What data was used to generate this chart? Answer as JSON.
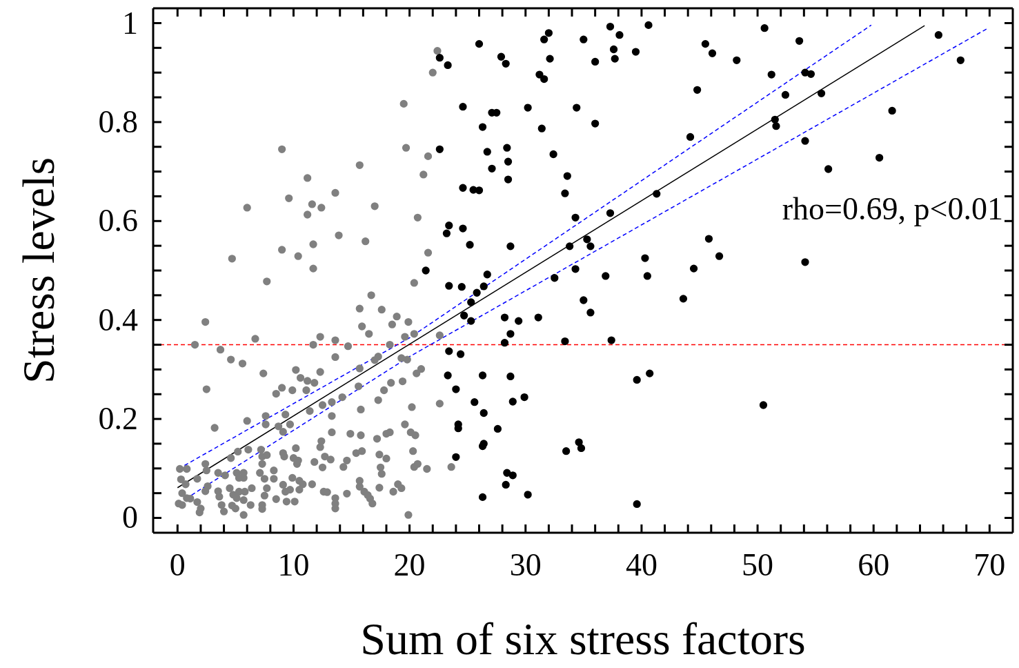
{
  "chart_data": {
    "type": "scatter",
    "xlabel": "Sum of six stress factors",
    "ylabel": "Stress levels",
    "marker": "circle",
    "xlim": [
      -2.1,
      72
    ],
    "ylim": [
      -0.03,
      1.03
    ],
    "xticks": [
      0,
      {
        "value": 2,
        "label": null
      },
      {
        "value": 4,
        "label": null
      },
      {
        "value": 6,
        "label": null
      },
      {
        "value": 8,
        "label": null
      },
      10,
      {
        "value": 12,
        "label": null
      },
      {
        "value": 14,
        "label": null
      },
      {
        "value": 16,
        "label": null
      },
      {
        "value": 18,
        "label": null
      },
      20,
      {
        "value": 22,
        "label": null
      },
      {
        "value": 24,
        "label": null
      },
      {
        "value": 26,
        "label": null
      },
      {
        "value": 28,
        "label": null
      },
      30,
      {
        "value": 32,
        "label": null
      },
      {
        "value": 34,
        "label": null
      },
      {
        "value": 36,
        "label": null
      },
      {
        "value": 38,
        "label": null
      },
      40,
      {
        "value": 42,
        "label": null
      },
      {
        "value": 44,
        "label": null
      },
      {
        "value": 46,
        "label": null
      },
      {
        "value": 48,
        "label": null
      },
      50,
      {
        "value": 52,
        "label": null
      },
      {
        "value": 54,
        "label": null
      },
      {
        "value": 56,
        "label": null
      },
      {
        "value": 58,
        "label": null
      },
      60,
      {
        "value": 62,
        "label": null
      },
      {
        "value": 64,
        "label": null
      },
      {
        "value": 66,
        "label": null
      },
      {
        "value": 68,
        "label": null
      },
      70
    ],
    "yticks": [
      0,
      {
        "value": 0.05,
        "label": null
      },
      {
        "value": 0.1,
        "label": null
      },
      {
        "value": 0.15,
        "label": null
      },
      0.2,
      {
        "value": 0.25,
        "label": null
      },
      {
        "value": 0.3,
        "label": null
      },
      {
        "value": 0.35,
        "label": null
      },
      0.4,
      {
        "value": 0.45,
        "label": null
      },
      {
        "value": 0.5,
        "label": null
      },
      {
        "value": 0.55,
        "label": null
      },
      0.6,
      {
        "value": 0.65,
        "label": null
      },
      {
        "value": 0.7,
        "label": null
      },
      {
        "value": 0.75,
        "label": null
      },
      0.8,
      {
        "value": 0.85,
        "label": null
      },
      {
        "value": 0.9,
        "label": null
      },
      {
        "value": 0.95,
        "label": null
      },
      1
    ],
    "ref_lines": [
      {
        "axis": "y",
        "value": 0.35,
        "color": "#ff0000",
        "line_style": "dashed"
      }
    ],
    "annotations": [
      "rho=0.69, p<0.01"
    ],
    "series": [
      {
        "color": "#808080",
        "x": [
          22.4,
          22.0,
          21.6,
          21.2,
          20.7,
          21.6,
          20.4,
          9.0,
          19.7,
          15.7,
          11.2,
          13.6,
          9.6,
          11.6,
          12.4,
          6.0,
          17.0,
          11.2,
          13.9,
          16.2,
          11.7,
          9.0,
          10.4,
          4.7,
          11.7,
          7.7,
          16.7,
          19.5,
          2.4,
          1.5,
          3.7,
          4.6,
          5.6,
          6.7,
          7.4,
          2.5,
          3.2,
          6.0,
          7.6,
          7.6,
          8.5,
          9.0,
          9.3,
          9.7,
          8.7,
          9.1,
          9.9,
          10.2,
          10.6,
          11.2,
          11.8,
          11.1,
          12.3,
          11.7,
          13.6,
          13.6,
          12.3,
          12.5,
          11.4,
          13.3,
          13.3,
          14.2,
          15.7,
          17.6,
          15.9,
          16.5,
          14.7,
          18.3,
          18.5,
          18.9,
          19.9,
          19.6,
          20.4,
          22.6,
          15.7,
          15.6,
          17.3,
          17.0,
          19.3,
          19.8,
          21.0,
          20.6,
          18.4,
          17.8,
          19.4,
          17.3,
          15.8,
          20.2,
          22.6,
          19.6,
          20.1,
          20.5,
          18.3,
          18.0,
          17.2,
          14.9,
          15.8,
          13.3,
          12.4,
          12.3,
          20.3,
          17.4,
          18.0,
          15.9,
          15.4,
          14.6,
          14.3,
          13.2,
          12.7,
          12.5,
          11.8,
          10.2,
          10.0,
          10.4,
          10.3,
          9.1,
          9.2,
          7.2,
          7.3,
          7.7,
          7.3,
          6.1,
          5.2,
          4.6,
          2.4,
          2.5,
          0.2,
          0.8,
          0.3,
          0.7,
          1.7,
          3.5,
          4.1,
          5.1,
          5.7,
          5.3,
          5.7,
          7.1,
          7.5,
          8.3,
          8.3,
          7.7,
          7.5,
          7.3,
          7.3,
          6.4,
          5.8,
          5.7,
          5.7,
          6.3,
          5.3,
          4.5,
          4.8,
          5.1,
          4.7,
          5.0,
          4.0,
          3.8,
          3.6,
          3.5,
          2.6,
          2.4,
          0.4,
          0.8,
          1.1,
          0.1,
          0.4,
          1.7,
          2.0,
          1.9,
          8.5,
          9.1,
          9.3,
          9.4,
          10.1,
          9.7,
          9.9,
          10.5,
          10.8,
          10.5,
          11.6,
          12.6,
          12.9,
          13.6,
          13.6,
          13.6,
          14.6,
          15.7,
          15.7,
          16.1,
          16.4,
          16.6,
          16.8,
          17.4,
          18.6,
          19.0,
          19.3,
          19.9,
          21.5,
          23.6,
          20.4,
          20.7,
          17.5,
          17.6
        ],
        "values": [
          0.944,
          0.9,
          0.731,
          0.694,
          0.607,
          0.536,
          0.475,
          0.745,
          0.748,
          0.713,
          0.687,
          0.657,
          0.646,
          0.634,
          0.627,
          0.627,
          0.63,
          0.613,
          0.571,
          0.559,
          0.553,
          0.542,
          0.529,
          0.524,
          0.504,
          0.478,
          0.45,
          0.837,
          0.396,
          0.35,
          0.34,
          0.32,
          0.312,
          0.362,
          0.292,
          0.26,
          0.182,
          0.196,
          0.206,
          0.189,
          0.251,
          0.263,
          0.209,
          0.189,
          0.185,
          0.174,
          0.258,
          0.299,
          0.283,
          0.277,
          0.273,
          0.258,
          0.366,
          0.35,
          0.359,
          0.325,
          0.295,
          0.228,
          0.216,
          0.234,
          0.206,
          0.244,
          0.423,
          0.421,
          0.387,
          0.372,
          0.347,
          0.35,
          0.391,
          0.407,
          0.396,
          0.366,
          0.372,
          0.369,
          0.302,
          0.266,
          0.326,
          0.319,
          0.323,
          0.32,
          0.301,
          0.292,
          0.273,
          0.258,
          0.276,
          0.238,
          0.219,
          0.224,
          0.231,
          0.189,
          0.173,
          0.167,
          0.173,
          0.17,
          0.16,
          0.17,
          0.167,
          0.173,
          0.155,
          0.143,
          0.135,
          0.128,
          0.12,
          0.135,
          0.131,
          0.116,
          0.103,
          0.118,
          0.124,
          0.102,
          0.113,
          0.141,
          0.121,
          0.116,
          0.109,
          0.131,
          0.124,
          0.138,
          0.124,
          0.127,
          0.109,
          0.138,
          0.134,
          0.121,
          0.109,
          0.096,
          0.099,
          0.099,
          0.078,
          0.068,
          0.079,
          0.091,
          0.086,
          0.091,
          0.091,
          0.081,
          0.081,
          0.091,
          0.079,
          0.096,
          0.079,
          0.06,
          0.045,
          0.026,
          0.018,
          0.06,
          0.053,
          0.036,
          0.006,
          0.026,
          0.053,
          0.06,
          0.047,
          0.04,
          0.025,
          0.019,
          0.013,
          0.026,
          0.043,
          0.054,
          0.064,
          0.054,
          0.05,
          0.04,
          0.039,
          0.029,
          0.026,
          0.032,
          0.019,
          0.011,
          0.038,
          0.067,
          0.053,
          0.033,
          0.033,
          0.057,
          0.081,
          0.075,
          0.068,
          0.057,
          0.068,
          0.053,
          0.052,
          0.04,
          0.029,
          0.019,
          0.049,
          0.075,
          0.063,
          0.053,
          0.046,
          0.039,
          0.029,
          0.061,
          0.053,
          0.068,
          0.06,
          0.006,
          0.099,
          0.103,
          0.103,
          0.109,
          0.102,
          0.089
        ]
      },
      {
        "color": "#000000",
        "x": [
          37.3,
          40.6,
          32.0,
          31.6,
          26.0,
          35.0,
          38.1,
          37.6,
          37.7,
          39.5,
          36.0,
          45.5,
          46.1,
          22.6,
          23.3,
          27.9,
          28.3,
          32.1,
          31.2,
          31.6,
          44.8,
          24.6,
          27.1,
          27.5,
          30.2,
          34.4,
          26.3,
          31.4,
          36.0,
          44.2,
          22.6,
          26.7,
          28.4,
          28.5,
          32.4,
          27.1,
          28.5,
          33.6,
          24.6,
          25.5,
          26.0,
          33.4,
          41.3,
          34.3,
          37.3,
          23.4,
          23.2,
          24.6,
          25.2,
          28.7,
          33.8,
          35.3,
          35.6,
          45.8,
          46.7,
          40.3,
          44.5,
          40.5,
          36.9,
          34.3,
          32.5,
          21.4,
          26.7,
          23.4,
          24.5,
          26.4,
          25.8,
          25.3,
          24.7,
          25.3,
          28.2,
          29.4,
          31.1,
          35.0,
          35.6,
          43.6,
          28.7,
          28.2,
          33.4,
          37.4,
          23.4,
          24.4,
          23.3,
          26.3,
          28.7,
          24.0,
          25.6,
          28.9,
          29.9,
          26.4,
          24.2,
          24.2,
          27.6,
          26.4,
          26.3,
          24.0,
          34.6,
          34.8,
          33.5,
          40.7,
          39.6,
          28.4,
          28.9,
          28.3,
          26.3,
          30.2,
          39.6,
          50.6,
          53.6,
          51.2,
          54.1,
          54.6,
          52.4,
          55.5,
          51.5,
          51.6,
          54.1,
          61.6,
          60.5,
          56.1,
          65.6,
          67.5,
          54.1,
          50.5,
          48.2
        ],
        "values": [
          0.993,
          0.996,
          0.98,
          0.967,
          0.958,
          0.967,
          0.976,
          0.947,
          0.928,
          0.942,
          0.922,
          0.958,
          0.939,
          0.93,
          0.915,
          0.932,
          0.918,
          0.928,
          0.896,
          0.887,
          0.865,
          0.831,
          0.819,
          0.819,
          0.829,
          0.829,
          0.79,
          0.787,
          0.797,
          0.77,
          0.745,
          0.74,
          0.748,
          0.72,
          0.735,
          0.706,
          0.684,
          0.691,
          0.667,
          0.663,
          0.662,
          0.656,
          0.655,
          0.607,
          0.616,
          0.591,
          0.575,
          0.585,
          0.552,
          0.549,
          0.549,
          0.563,
          0.549,
          0.564,
          0.529,
          0.525,
          0.504,
          0.489,
          0.489,
          0.503,
          0.485,
          0.5,
          0.492,
          0.469,
          0.467,
          0.468,
          0.455,
          0.436,
          0.409,
          0.398,
          0.405,
          0.398,
          0.405,
          0.44,
          0.415,
          0.443,
          0.372,
          0.354,
          0.357,
          0.359,
          0.337,
          0.331,
          0.288,
          0.288,
          0.286,
          0.26,
          0.234,
          0.235,
          0.244,
          0.212,
          0.189,
          0.181,
          0.18,
          0.15,
          0.145,
          0.123,
          0.153,
          0.141,
          0.135,
          0.292,
          0.279,
          0.091,
          0.086,
          0.067,
          0.042,
          0.047,
          0.028,
          0.99,
          0.964,
          0.896,
          0.9,
          0.897,
          0.855,
          0.858,
          0.805,
          0.792,
          0.762,
          0.823,
          0.728,
          0.705,
          0.976,
          0.925,
          0.517,
          0.228,
          0.925
        ]
      },
      {
        "type": "line",
        "color": "#000000",
        "line_style": "solid",
        "marker": "none",
        "x": [
          0,
          64.4
        ],
        "values": [
          0.061,
          0.995
        ]
      },
      {
        "type": "line",
        "color": "#0000ff",
        "line_style": "dashed",
        "marker": "none",
        "x": [
          0.6,
          20,
          59.8
        ],
        "values": [
          0.106,
          0.364,
          0.996
        ]
      },
      {
        "type": "line",
        "color": "#0000ff",
        "line_style": "dashed",
        "marker": "none",
        "x": [
          1.2,
          20,
          69.8
        ],
        "values": [
          0.046,
          0.326,
          0.989
        ]
      }
    ]
  }
}
